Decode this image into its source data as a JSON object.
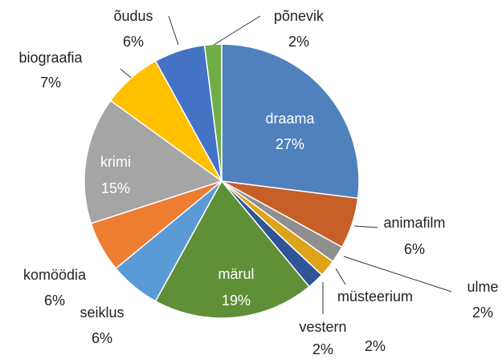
{
  "chart_data": {
    "type": "pie",
    "categories": [
      "draama",
      "animafilm",
      "ulme",
      "müsteerium",
      "vestern",
      "märul",
      "seiklus",
      "komöödia",
      "krimi",
      "biograafia",
      "õudus",
      "põnevik"
    ],
    "values": [
      27,
      6,
      2,
      2,
      2,
      19,
      6,
      6,
      15,
      7,
      6,
      2
    ],
    "value_labels": [
      "27%",
      "6%",
      "2%",
      "2%",
      "2%",
      "19%",
      "6%",
      "6%",
      "15%",
      "7%",
      "6%",
      "2%"
    ],
    "colors": [
      "#4f81bd",
      "#c65f28",
      "#8f8f8f",
      "#dca31b",
      "#2f5597",
      "#5f8f37",
      "#5b9bd5",
      "#ed7d31",
      "#a5a5a5",
      "#ffc000",
      "#4472c4",
      "#70ad47"
    ]
  }
}
